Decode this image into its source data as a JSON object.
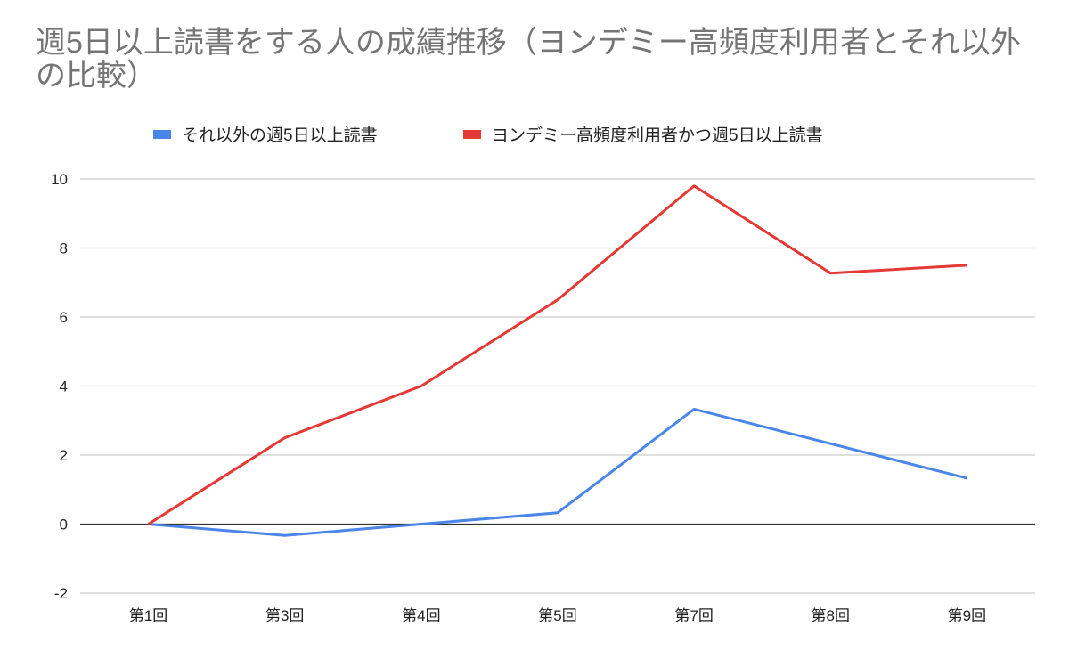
{
  "chart_data": {
    "type": "line",
    "title": "週5日以上読書をする人の成績推移（ヨンデミー高頻度利用者とそれ以外の比較）",
    "xlabel": "",
    "ylabel": "",
    "categories": [
      "第1回",
      "第3回",
      "第4回",
      "第5回",
      "第7回",
      "第8回",
      "第9回"
    ],
    "ylim": [
      -2,
      10
    ],
    "yticks": [
      -2,
      0,
      2,
      4,
      6,
      8,
      10
    ],
    "grid": true,
    "legend": "top",
    "series": [
      {
        "name": "それ以外の週5日以上読書",
        "color": "#4a86e8",
        "values": [
          0,
          -0.33,
          0,
          0.33,
          3.33,
          2.33,
          1.33
        ]
      },
      {
        "name": "ヨンデミー高頻度利用者かつ週5日以上読書",
        "color": "#e53935",
        "values": [
          0,
          2.5,
          4,
          6.5,
          9.8,
          7.27,
          7.5
        ]
      }
    ]
  }
}
